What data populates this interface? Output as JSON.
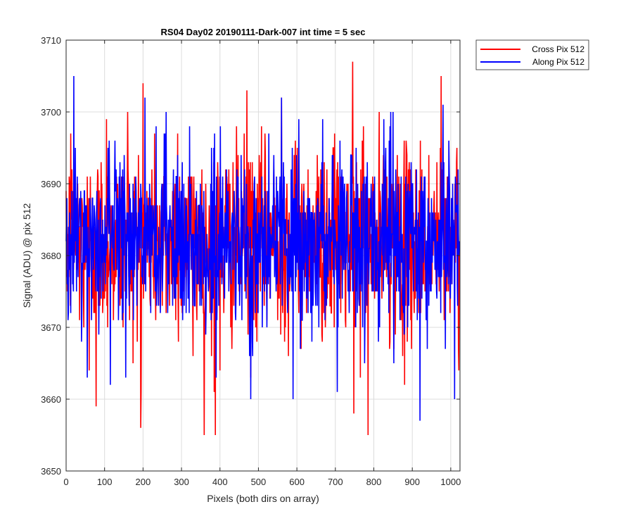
{
  "chart_data": {
    "type": "line",
    "title": "RS04 Day02 20190111-Dark-007 int time = 5 sec",
    "xlabel": "Pixels (both dirs on array)",
    "ylabel": "Signal (ADU) @ pix 512",
    "xlim": [
      0,
      1024
    ],
    "ylim": [
      3650,
      3710
    ],
    "xticks": [
      0,
      100,
      200,
      300,
      400,
      500,
      600,
      700,
      800,
      900,
      1000
    ],
    "yticks": [
      3650,
      3660,
      3670,
      3680,
      3690,
      3700,
      3710
    ],
    "grid": true,
    "legend_position": "outside-top-right",
    "series": [
      {
        "name": "Cross Pix 512",
        "color": "#ff0000",
        "mean": 3682,
        "std": 6.5,
        "n_points": 1024,
        "extremes": [
          [
            0,
            3689
          ],
          [
            12,
            3697
          ],
          [
            45,
            3675
          ],
          [
            60,
            3664
          ],
          [
            78,
            3659
          ],
          [
            105,
            3699
          ],
          [
            160,
            3700
          ],
          [
            185,
            3668
          ],
          [
            195,
            3661
          ],
          [
            200,
            3704
          ],
          [
            250,
            3673
          ],
          [
            290,
            3697
          ],
          [
            300,
            3685
          ],
          [
            330,
            3666
          ],
          [
            360,
            3672
          ],
          [
            385,
            3661
          ],
          [
            388,
            3655
          ],
          [
            400,
            3664
          ],
          [
            470,
            3703
          ],
          [
            480,
            3663
          ],
          [
            560,
            3702
          ],
          [
            610,
            3673
          ],
          [
            700,
            3688
          ],
          [
            745,
            3707
          ],
          [
            748,
            3658
          ],
          [
            770,
            3696
          ],
          [
            785,
            3655
          ],
          [
            800,
            3690
          ],
          [
            880,
            3662
          ],
          [
            900,
            3688
          ],
          [
            975,
            3705
          ],
          [
            1000,
            3684
          ],
          [
            1015,
            3693
          ],
          [
            1020,
            3667
          ]
        ]
      },
      {
        "name": "Along Pix 512",
        "color": "#0000ff",
        "mean": 3682,
        "std": 6.0,
        "n_points": 1024,
        "extremes": [
          [
            0,
            3682
          ],
          [
            20,
            3705
          ],
          [
            40,
            3668
          ],
          [
            55,
            3663
          ],
          [
            90,
            3688
          ],
          [
            115,
            3662
          ],
          [
            170,
            3686
          ],
          [
            205,
            3702
          ],
          [
            260,
            3700
          ],
          [
            325,
            3678
          ],
          [
            390,
            3663
          ],
          [
            455,
            3694
          ],
          [
            480,
            3660
          ],
          [
            500,
            3686
          ],
          [
            560,
            3702
          ],
          [
            590,
            3660
          ],
          [
            650,
            3680
          ],
          [
            705,
            3661
          ],
          [
            760,
            3685
          ],
          [
            800,
            3686
          ],
          [
            850,
            3700
          ],
          [
            880,
            3670
          ],
          [
            920,
            3657
          ],
          [
            980,
            3701
          ],
          [
            1000,
            3680
          ],
          [
            1010,
            3660
          ],
          [
            1024,
            3682
          ]
        ]
      }
    ]
  }
}
